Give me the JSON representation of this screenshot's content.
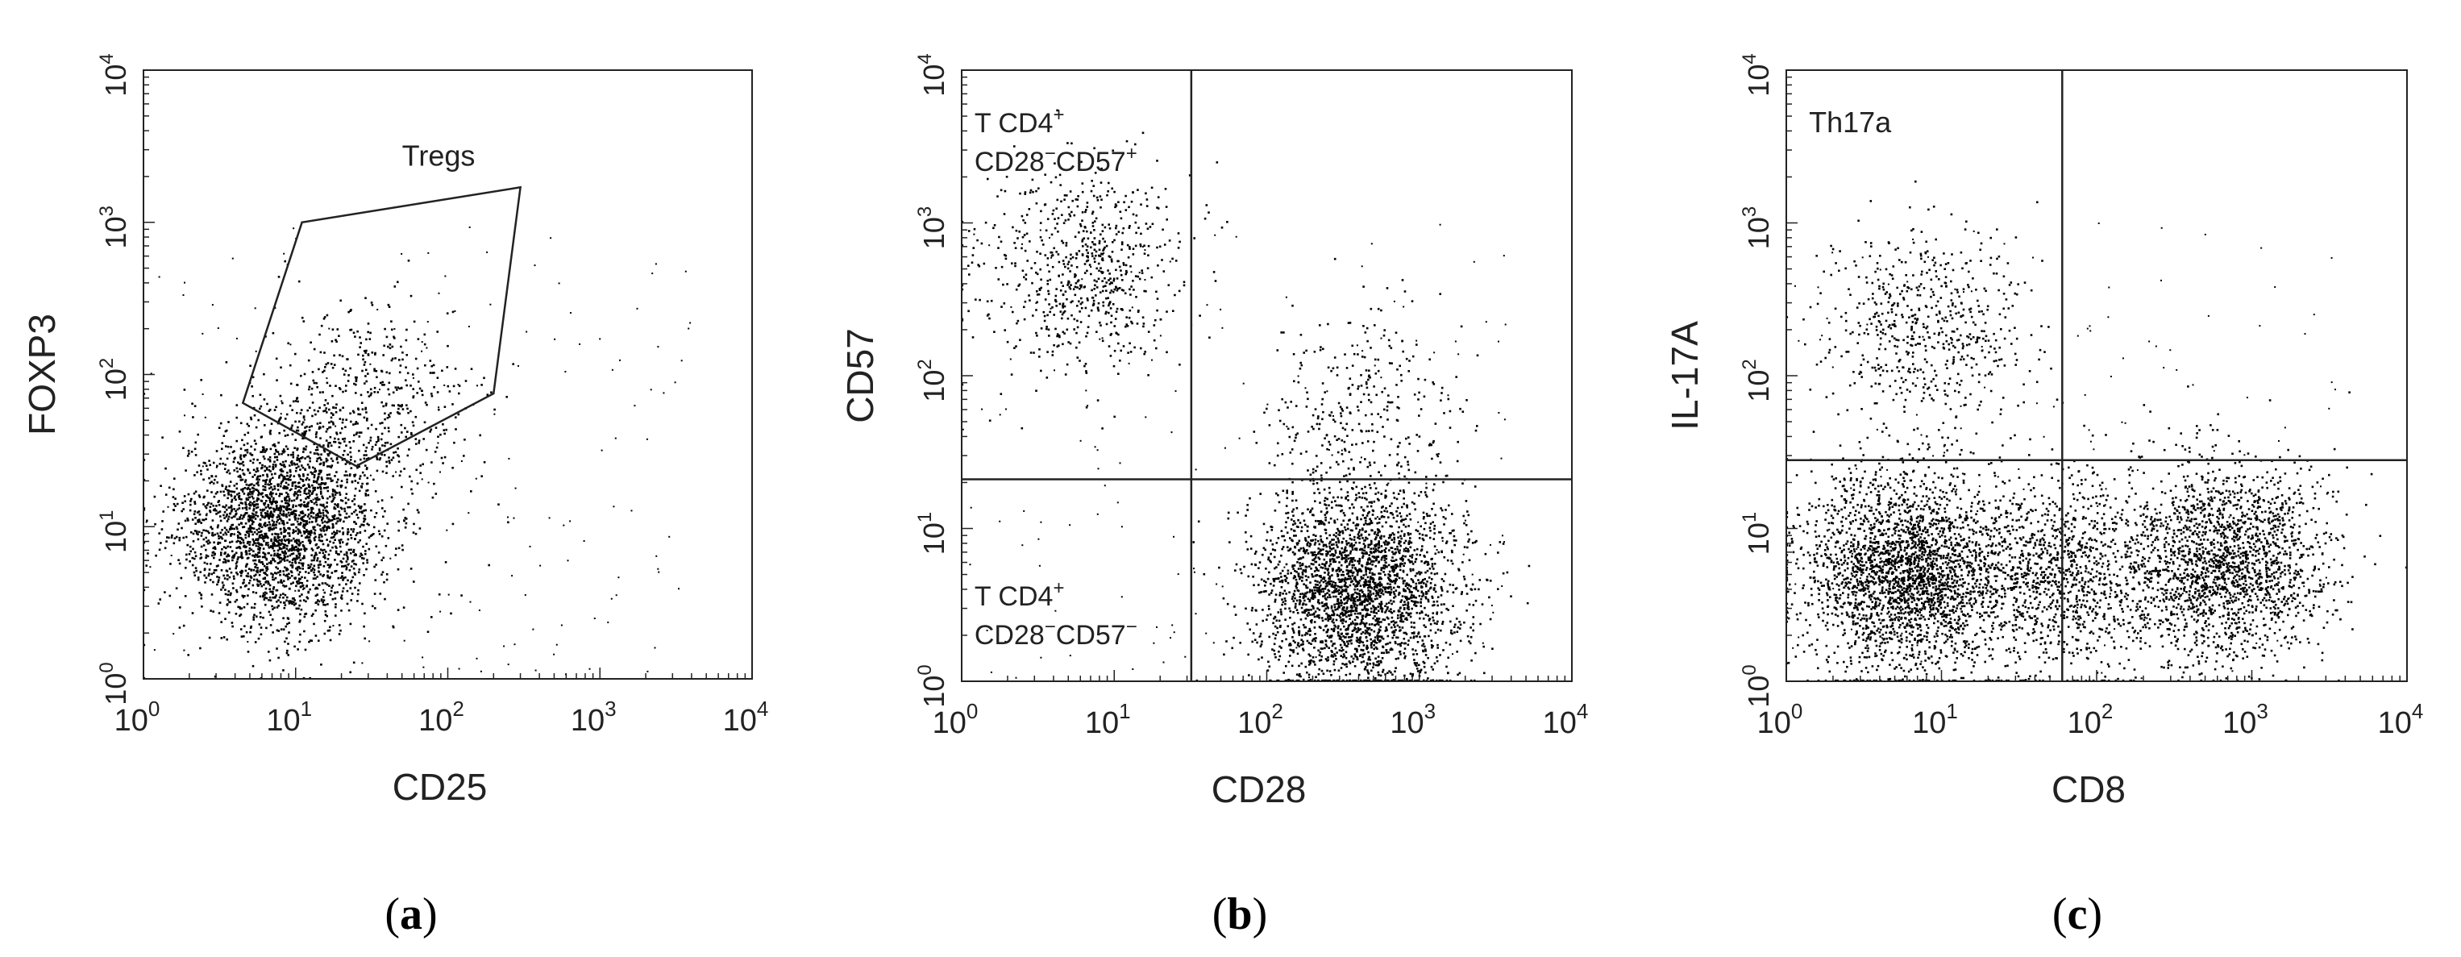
{
  "chart_data": [
    {
      "type": "scatter",
      "panel": "(a)",
      "xlabel": "CD25",
      "ylabel": "FOXP3",
      "xscale": "log",
      "yscale": "log",
      "xlim": [
        1,
        10000
      ],
      "ylim": [
        1,
        10000
      ],
      "xticks": [
        {
          "base": "10",
          "exp": "0"
        },
        {
          "base": "10",
          "exp": "1"
        },
        {
          "base": "10",
          "exp": "2"
        },
        {
          "base": "10",
          "exp": "3"
        },
        {
          "base": "10",
          "exp": "4"
        }
      ],
      "yticks": [
        {
          "base": "10",
          "exp": "0"
        },
        {
          "base": "10",
          "exp": "1"
        },
        {
          "base": "10",
          "exp": "2"
        },
        {
          "base": "10",
          "exp": "3"
        },
        {
          "base": "10",
          "exp": "4"
        }
      ],
      "clusters": [
        {
          "cx": 8,
          "cy": 10,
          "count": 2600
        },
        {
          "cx": 30,
          "cy": 60,
          "count": 550
        }
      ],
      "gates": [
        {
          "label": "Tregs",
          "polygon": [
            [
              4.5,
              65
            ],
            [
              11,
              1000
            ],
            [
              300,
              1700
            ],
            [
              200,
              75
            ],
            [
              25,
              25
            ]
          ]
        }
      ],
      "quadrant_lines": null,
      "annotations": [
        {
          "text": "Tregs",
          "x": 50,
          "y": 3000
        }
      ],
      "caption": {
        "open": "(",
        "letter": "a",
        "close": ")"
      }
    },
    {
      "type": "scatter",
      "panel": "(b)",
      "xlabel": "CD28",
      "ylabel": "CD57",
      "xscale": "log",
      "yscale": "log",
      "xlim": [
        1,
        10000
      ],
      "ylim": [
        1,
        10000
      ],
      "xticks": [
        {
          "base": "10",
          "exp": "0"
        },
        {
          "base": "10",
          "exp": "1"
        },
        {
          "base": "10",
          "exp": "2"
        },
        {
          "base": "10",
          "exp": "3"
        },
        {
          "base": "10",
          "exp": "4"
        }
      ],
      "yticks": [
        {
          "base": "10",
          "exp": "0"
        },
        {
          "base": "10",
          "exp": "1"
        },
        {
          "base": "10",
          "exp": "2"
        },
        {
          "base": "10",
          "exp": "3"
        },
        {
          "base": "10",
          "exp": "4"
        }
      ],
      "clusters": [
        {
          "cx": 6,
          "cy": 500,
          "count": 700
        },
        {
          "cx": 400,
          "cy": 4,
          "count": 2800
        },
        {
          "cx": 400,
          "cy": 60,
          "count": 300
        }
      ],
      "gates": [],
      "quadrant_lines": {
        "x": 32,
        "y": 21
      },
      "annotations": [
        {
          "lines": [
            {
              "text": "T CD4",
              "sup": "+"
            },
            {
              "text": "CD28",
              "sup": "−",
              "text2": "CD57",
              "sup2": "+"
            }
          ],
          "x": 1.1,
          "y": 5000
        },
        {
          "lines": [
            {
              "text": "T CD4",
              "sup": "+"
            },
            {
              "text": "CD28",
              "sup": "−",
              "text2": "CD57",
              "sup2": "−"
            }
          ],
          "x": 1.1,
          "y": 4
        }
      ],
      "caption": {
        "open": "(",
        "letter": "b",
        "close": ")"
      }
    },
    {
      "type": "scatter",
      "panel": "(c)",
      "xlabel": "CD8",
      "ylabel": "IL-17A",
      "xscale": "log",
      "yscale": "log",
      "xlim": [
        1,
        10000
      ],
      "ylim": [
        1,
        10000
      ],
      "xticks": [
        {
          "base": "10",
          "exp": "0"
        },
        {
          "base": "10",
          "exp": "1"
        },
        {
          "base": "10",
          "exp": "2"
        },
        {
          "base": "10",
          "exp": "3"
        },
        {
          "base": "10",
          "exp": "4"
        }
      ],
      "yticks": [
        {
          "base": "10",
          "exp": "0"
        },
        {
          "base": "10",
          "exp": "1"
        },
        {
          "base": "10",
          "exp": "2"
        },
        {
          "base": "10",
          "exp": "3"
        },
        {
          "base": "10",
          "exp": "4"
        }
      ],
      "clusters": [
        {
          "cx": 6,
          "cy": 5,
          "count": 2600
        },
        {
          "cx": 700,
          "cy": 6,
          "count": 1900
        },
        {
          "cx": 60,
          "cy": 5,
          "count": 1100
        },
        {
          "cx": 8,
          "cy": 200,
          "count": 600
        }
      ],
      "gates": [],
      "quadrant_lines": {
        "x": 60,
        "y": 28
      },
      "annotations": [
        {
          "text": "Th17a",
          "x": 1.4,
          "y": 5000
        }
      ],
      "caption": {
        "open": "(",
        "letter": "c",
        "close": ")"
      }
    }
  ]
}
